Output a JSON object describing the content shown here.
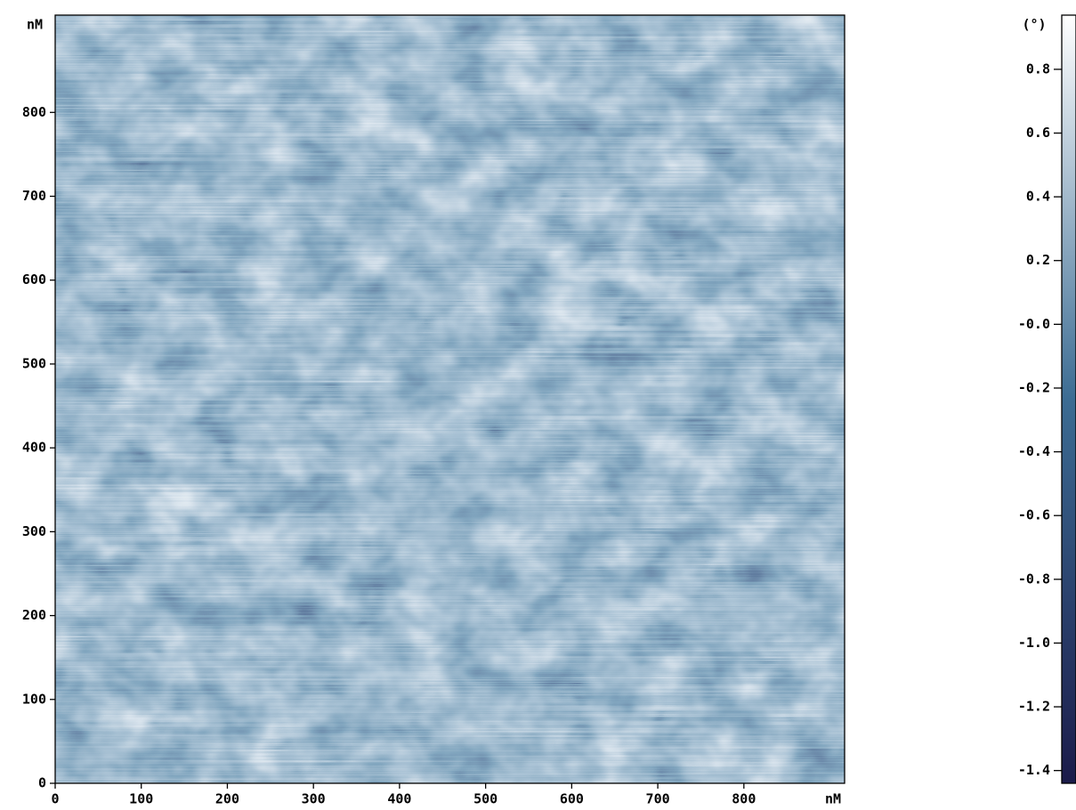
{
  "chart_data": {
    "type": "heatmap",
    "xlabel": "nM",
    "ylabel": "nM",
    "colorbar_label": "(°)",
    "xlim": [
      0,
      917
    ],
    "xticks": [
      0,
      100,
      200,
      300,
      400,
      500,
      600,
      700,
      800
    ],
    "ylim": [
      0,
      916
    ],
    "yticks": [
      0,
      100,
      200,
      300,
      400,
      500,
      600,
      700,
      800
    ],
    "clim": [
      -1.44,
      0.97
    ],
    "cticks": [
      0.8,
      0.6,
      0.4,
      0.2,
      {
        "value": 0,
        "label": "-0.0"
      },
      -0.2,
      -0.4,
      -0.6,
      -0.8,
      {
        "value": -1,
        "label": "-1.0"
      },
      -1.2,
      -1.4
    ],
    "colormap": [
      "#1b1b4a",
      "#3c6c93",
      "#ffffff"
    ]
  }
}
